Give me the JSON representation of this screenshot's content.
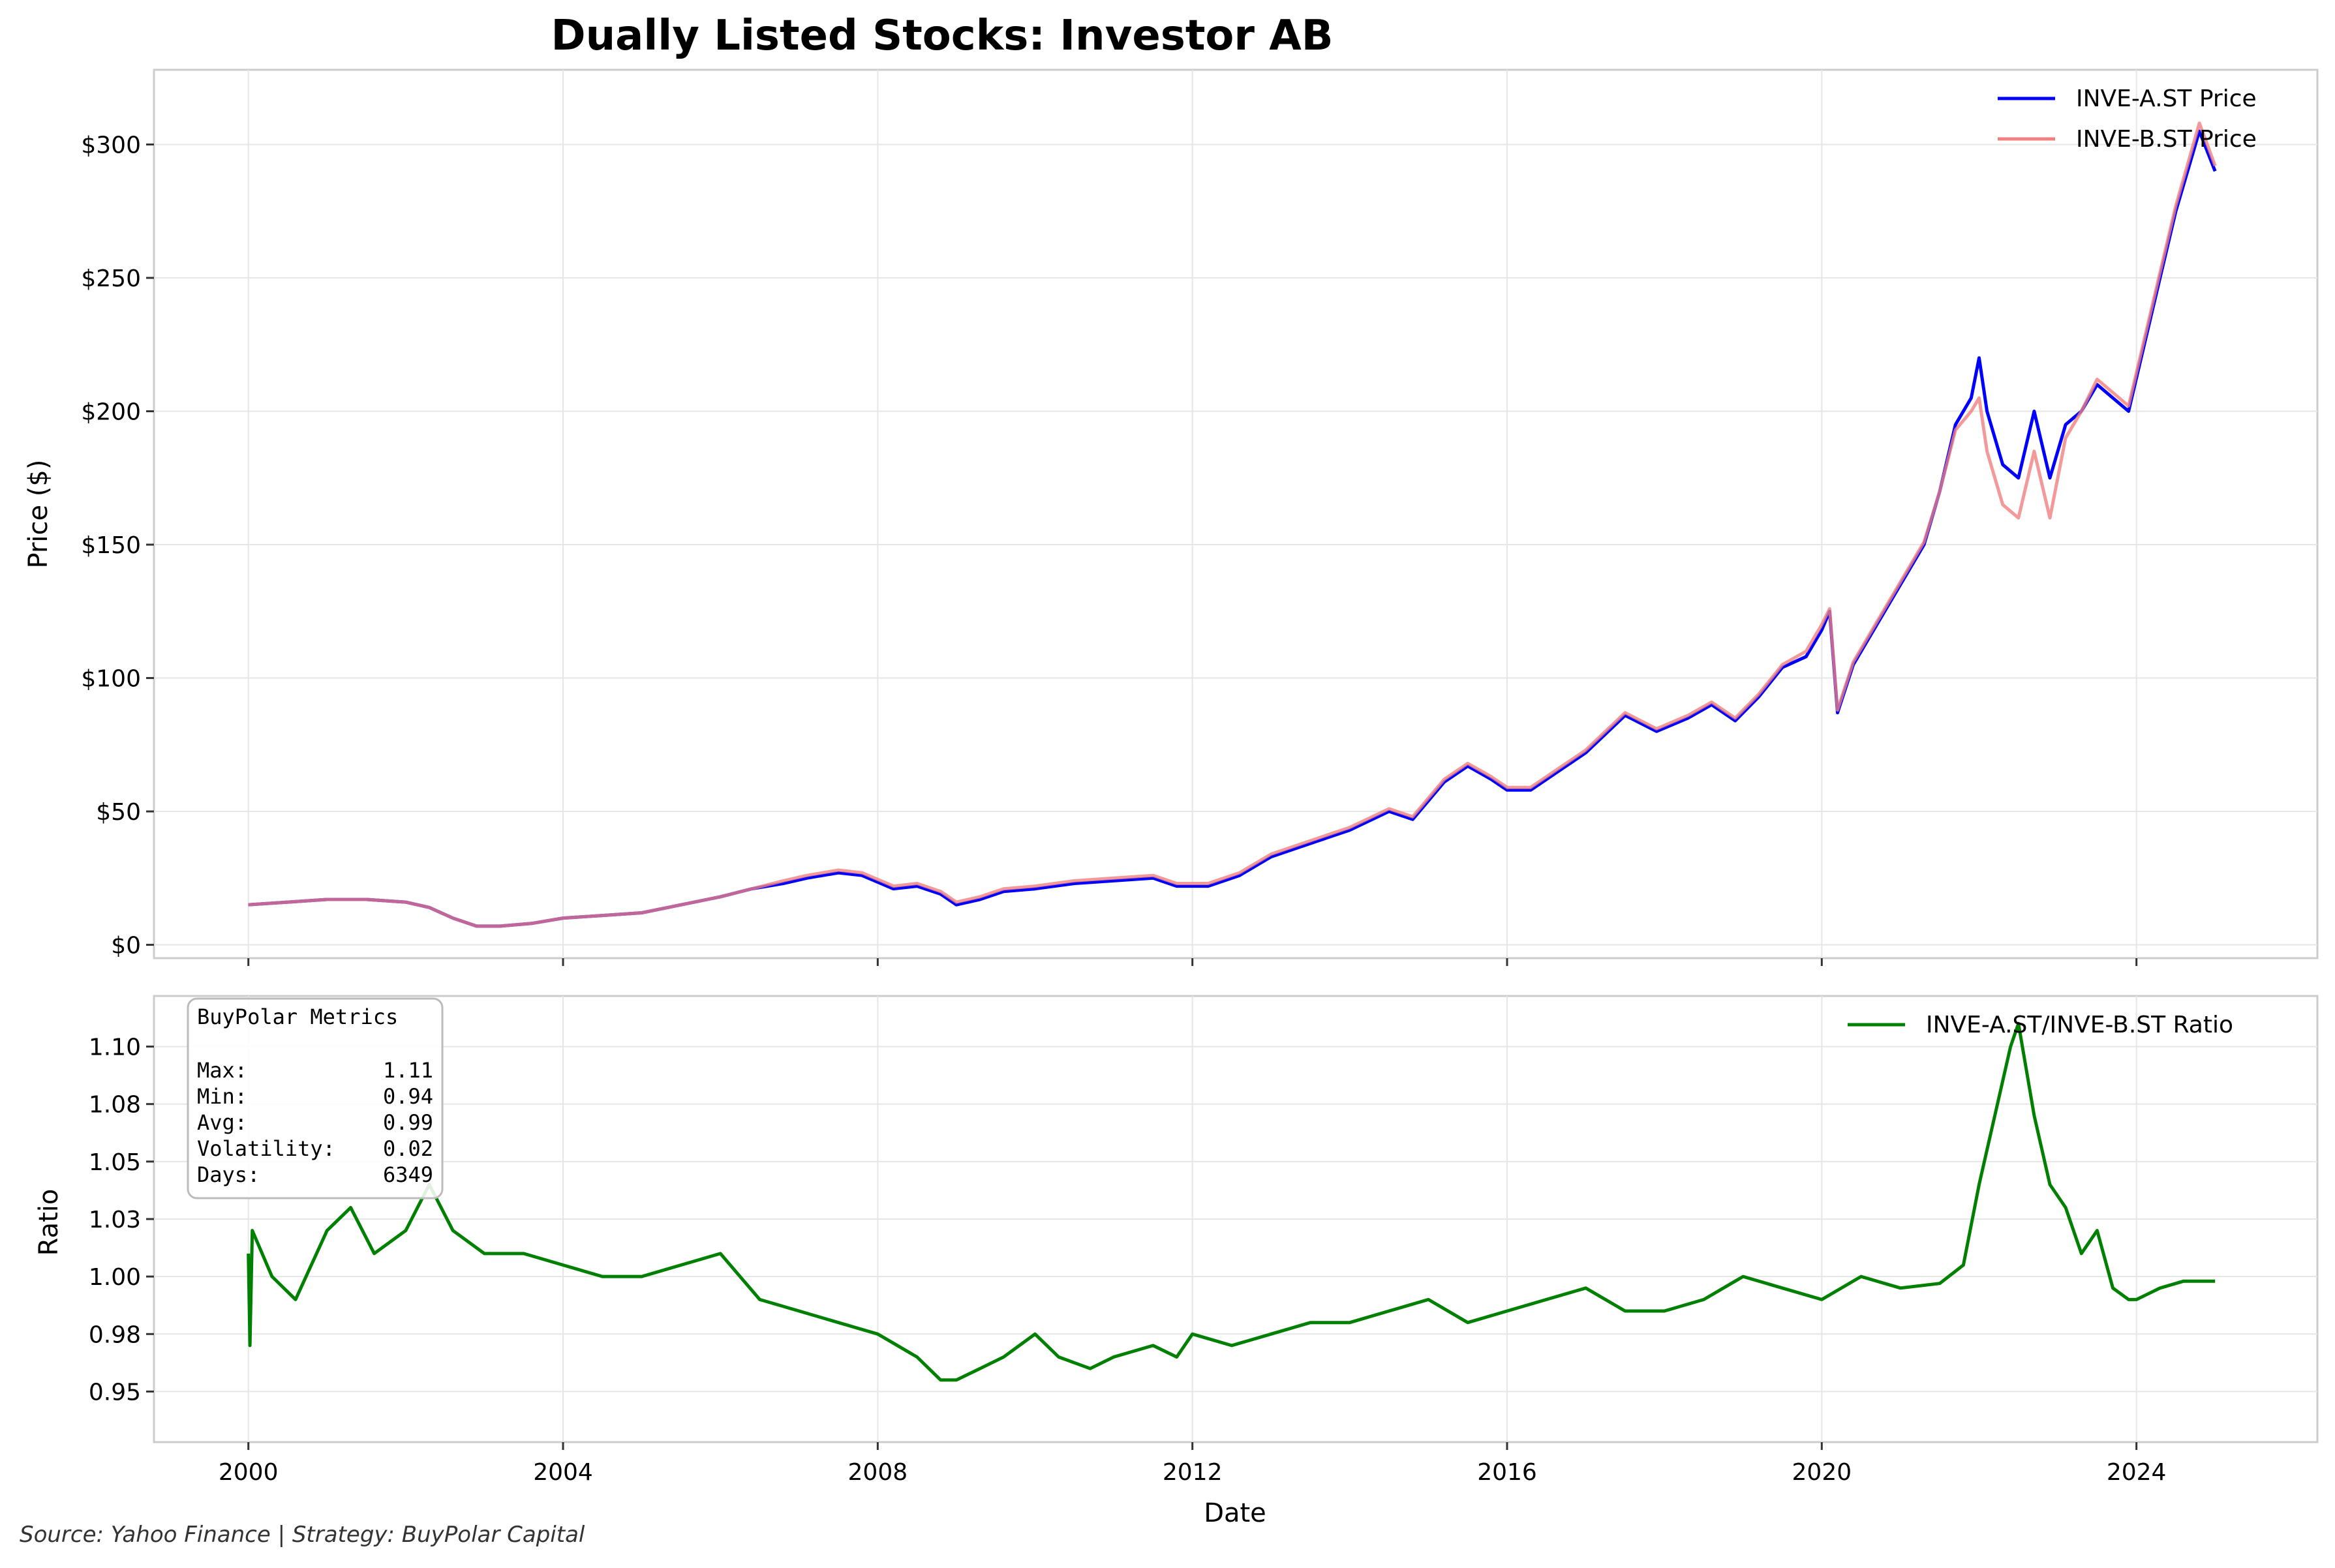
{
  "figure": {
    "title": "Dually Listed Stocks: Investor AB",
    "source_note": "Source: Yahoo Finance | Strategy: BuyPolar Capital"
  },
  "chart_data": [
    {
      "type": "line",
      "title": "Dually Listed Stocks: Investor AB",
      "xlabel": "",
      "ylabel": "Price ($)",
      "x_ticks": [
        "2000",
        "2004",
        "2008",
        "2012",
        "2016",
        "2020",
        "2024"
      ],
      "y_ticks": [
        "$0",
        "$50",
        "$100",
        "$150",
        "$200",
        "$250",
        "$300"
      ],
      "xlim": [
        1998.8,
        2026.3
      ],
      "ylim": [
        -5,
        328
      ],
      "grid": true,
      "legend_position": "top-right",
      "series": [
        {
          "name": "INVE-A.ST Price",
          "color": "#0000ff",
          "x": [
            2000.0,
            2000.5,
            2001.0,
            2001.5,
            2002.0,
            2002.3,
            2002.6,
            2002.9,
            2003.2,
            2003.6,
            2004.0,
            2004.5,
            2005.0,
            2005.5,
            2006.0,
            2006.4,
            2006.8,
            2007.1,
            2007.5,
            2007.8,
            2008.2,
            2008.5,
            2008.8,
            2009.0,
            2009.3,
            2009.6,
            2010.0,
            2010.5,
            2011.0,
            2011.5,
            2011.8,
            2012.2,
            2012.6,
            2013.0,
            2013.5,
            2014.0,
            2014.5,
            2014.8,
            2015.2,
            2015.5,
            2015.8,
            2016.0,
            2016.3,
            2016.7,
            2017.0,
            2017.5,
            2017.9,
            2018.3,
            2018.6,
            2018.9,
            2019.2,
            2019.5,
            2019.8,
            2020.0,
            2020.1,
            2020.2,
            2020.4,
            2020.7,
            2021.0,
            2021.3,
            2021.5,
            2021.7,
            2021.9,
            2022.0,
            2022.1,
            2022.3,
            2022.5,
            2022.7,
            2022.9,
            2023.1,
            2023.3,
            2023.5,
            2023.7,
            2023.9,
            2024.1,
            2024.3,
            2024.5,
            2024.8,
            2025.0
          ],
          "values": [
            15,
            16,
            17,
            17,
            16,
            14,
            10,
            7,
            7,
            8,
            10,
            11,
            12,
            15,
            18,
            21,
            23,
            25,
            27,
            26,
            21,
            22,
            19,
            15,
            17,
            20,
            21,
            23,
            24,
            25,
            22,
            22,
            26,
            33,
            38,
            43,
            50,
            47,
            61,
            67,
            62,
            58,
            58,
            66,
            72,
            86,
            80,
            85,
            90,
            84,
            93,
            104,
            108,
            118,
            125,
            87,
            105,
            120,
            135,
            150,
            170,
            195,
            205,
            220,
            200,
            180,
            175,
            200,
            175,
            195,
            200,
            210,
            205,
            200,
            225,
            250,
            275,
            305,
            290
          ]
        },
        {
          "name": "INVE-B.ST Price",
          "color": "#f08080",
          "x": [
            2000.0,
            2000.5,
            2001.0,
            2001.5,
            2002.0,
            2002.3,
            2002.6,
            2002.9,
            2003.2,
            2003.6,
            2004.0,
            2004.5,
            2005.0,
            2005.5,
            2006.0,
            2006.4,
            2006.8,
            2007.1,
            2007.5,
            2007.8,
            2008.2,
            2008.5,
            2008.8,
            2009.0,
            2009.3,
            2009.6,
            2010.0,
            2010.5,
            2011.0,
            2011.5,
            2011.8,
            2012.2,
            2012.6,
            2013.0,
            2013.5,
            2014.0,
            2014.5,
            2014.8,
            2015.2,
            2015.5,
            2015.8,
            2016.0,
            2016.3,
            2016.7,
            2017.0,
            2017.5,
            2017.9,
            2018.3,
            2018.6,
            2018.9,
            2019.2,
            2019.5,
            2019.8,
            2020.0,
            2020.1,
            2020.2,
            2020.4,
            2020.7,
            2021.0,
            2021.3,
            2021.5,
            2021.7,
            2021.9,
            2022.0,
            2022.1,
            2022.3,
            2022.5,
            2022.7,
            2022.9,
            2023.1,
            2023.3,
            2023.5,
            2023.7,
            2023.9,
            2024.1,
            2024.3,
            2024.5,
            2024.8,
            2025.0
          ],
          "values": [
            15,
            16,
            17,
            17,
            16,
            14,
            10,
            7,
            7,
            8,
            10,
            11,
            12,
            15,
            18,
            21,
            24,
            26,
            28,
            27,
            22,
            23,
            20,
            16,
            18,
            21,
            22,
            24,
            25,
            26,
            23,
            23,
            27,
            34,
            39,
            44,
            51,
            48,
            62,
            68,
            63,
            59,
            59,
            67,
            73,
            87,
            81,
            86,
            91,
            85,
            94,
            105,
            110,
            120,
            126,
            88,
            106,
            121,
            136,
            151,
            170,
            193,
            200,
            205,
            185,
            165,
            160,
            185,
            160,
            190,
            200,
            212,
            207,
            202,
            227,
            252,
            277,
            308,
            292
          ]
        }
      ]
    },
    {
      "type": "line",
      "title": "",
      "xlabel": "Date",
      "ylabel": "Ratio",
      "x_ticks": [
        "2000",
        "2004",
        "2008",
        "2012",
        "2016",
        "2020",
        "2024"
      ],
      "y_ticks": [
        "0.95",
        "0.98",
        "1.00",
        "1.03",
        "1.05",
        "1.08",
        "1.10"
      ],
      "xlim": [
        1998.8,
        2026.3
      ],
      "ylim": [
        0.928,
        1.122
      ],
      "grid": true,
      "legend_position": "top-right",
      "series": [
        {
          "name": "INVE-A.ST/INVE-B.ST Ratio",
          "color": "#008000",
          "x": [
            2000.0,
            2000.02,
            2000.05,
            2000.3,
            2000.6,
            2001.0,
            2001.3,
            2001.6,
            2002.0,
            2002.3,
            2002.6,
            2003.0,
            2003.5,
            2004.0,
            2004.5,
            2005.0,
            2005.5,
            2006.0,
            2006.5,
            2007.0,
            2007.5,
            2008.0,
            2008.5,
            2008.8,
            2009.0,
            2009.3,
            2009.6,
            2010.0,
            2010.3,
            2010.7,
            2011.0,
            2011.5,
            2011.8,
            2012.0,
            2012.5,
            2013.0,
            2013.5,
            2014.0,
            2014.5,
            2015.0,
            2015.5,
            2016.0,
            2016.5,
            2017.0,
            2017.5,
            2018.0,
            2018.5,
            2019.0,
            2019.5,
            2020.0,
            2020.5,
            2021.0,
            2021.5,
            2021.8,
            2022.0,
            2022.2,
            2022.4,
            2022.5,
            2022.7,
            2022.9,
            2023.1,
            2023.3,
            2023.5,
            2023.7,
            2023.9,
            2024.0,
            2024.3,
            2024.6,
            2025.0
          ],
          "values": [
            1.01,
            0.97,
            1.02,
            1.0,
            0.99,
            1.02,
            1.03,
            1.01,
            1.02,
            1.04,
            1.02,
            1.01,
            1.01,
            1.005,
            1.0,
            1.0,
            1.005,
            1.01,
            0.99,
            0.985,
            0.98,
            0.975,
            0.965,
            0.955,
            0.955,
            0.96,
            0.965,
            0.975,
            0.965,
            0.96,
            0.965,
            0.97,
            0.965,
            0.975,
            0.97,
            0.975,
            0.98,
            0.98,
            0.985,
            0.99,
            0.98,
            0.985,
            0.99,
            0.995,
            0.985,
            0.985,
            0.99,
            1.0,
            0.995,
            0.99,
            1.0,
            0.995,
            0.997,
            1.005,
            1.04,
            1.07,
            1.1,
            1.11,
            1.07,
            1.04,
            1.03,
            1.01,
            1.02,
            0.995,
            0.99,
            0.99,
            0.995,
            0.998,
            0.998
          ]
        }
      ],
      "metrics_box": {
        "title": "BuyPolar Metrics",
        "rows": [
          {
            "label": "Max:",
            "value": "1.11"
          },
          {
            "label": "Min:",
            "value": "0.94"
          },
          {
            "label": "Avg:",
            "value": "0.99"
          },
          {
            "label": "Volatility:",
            "value": "0.02"
          },
          {
            "label": "Days:",
            "value": "6349"
          }
        ]
      }
    }
  ]
}
